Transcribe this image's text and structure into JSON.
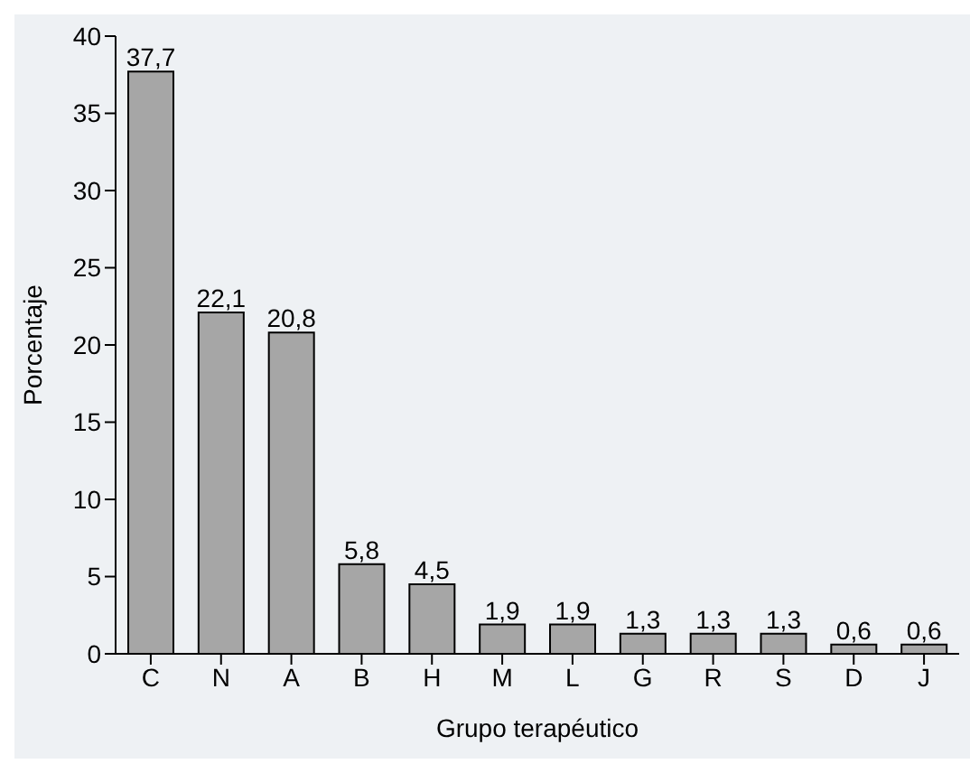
{
  "chart_data": {
    "type": "bar",
    "xlabel": "Grupo terapéutico",
    "ylabel": "Porcentaje",
    "categories": [
      "C",
      "N",
      "A",
      "B",
      "H",
      "M",
      "L",
      "G",
      "R",
      "S",
      "D",
      "J"
    ],
    "values": [
      37.7,
      22.1,
      20.8,
      5.8,
      4.5,
      1.9,
      1.9,
      1.3,
      1.3,
      1.3,
      0.6,
      0.6
    ],
    "value_labels": [
      "37,7",
      "22,1",
      "20,8",
      "5,8",
      "4,5",
      "1,9",
      "1,9",
      "1,3",
      "1,3",
      "1,3",
      "0,6",
      "0,6"
    ],
    "color": "#a6a6a6",
    "ylim": [
      0,
      40
    ],
    "yticks": [
      0,
      5,
      10,
      15,
      20,
      25,
      30,
      35,
      40
    ],
    "grid": false
  }
}
